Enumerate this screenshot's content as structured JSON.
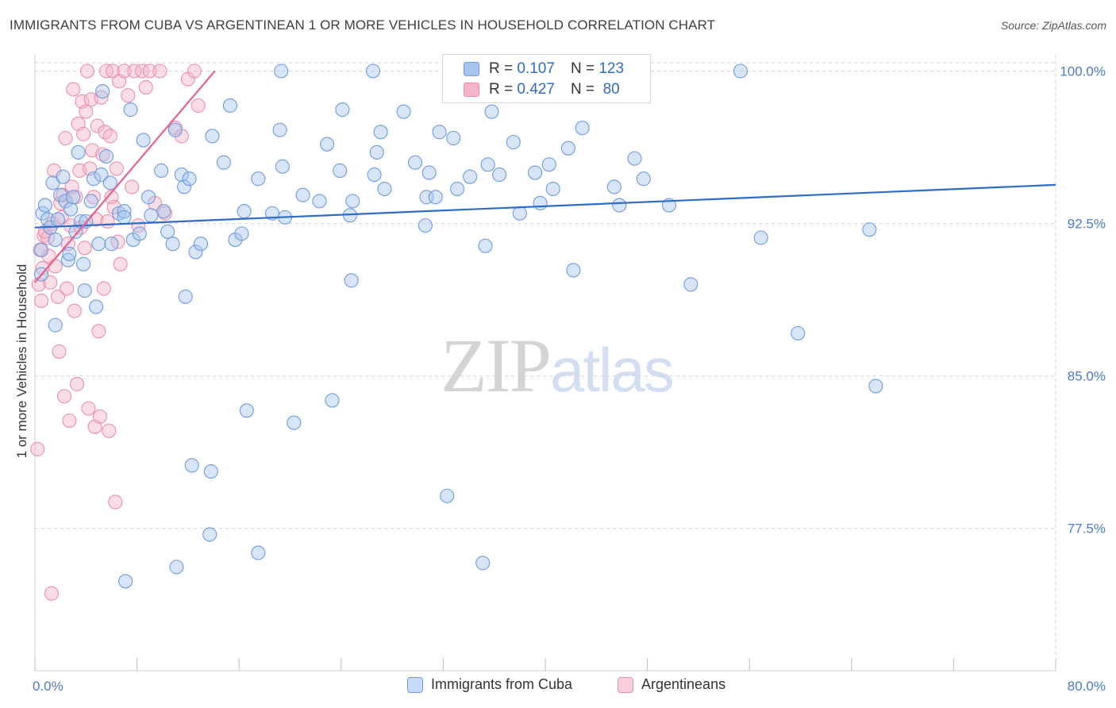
{
  "header": {
    "title": "IMMIGRANTS FROM CUBA VS ARGENTINEAN 1 OR MORE VEHICLES IN HOUSEHOLD CORRELATION CHART",
    "source": "Source: ZipAtlas.com"
  },
  "watermark": {
    "zip": "ZIP",
    "atlas": "atlas"
  },
  "legend_top": {
    "rows": [
      {
        "r_label": "R =",
        "r_value": "0.107",
        "n_label": "N =",
        "n_value": "123"
      },
      {
        "r_label": "R =",
        "r_value": "0.427",
        "n_label": "N =",
        "n_value": "80"
      }
    ]
  },
  "legend_bottom": {
    "items": [
      "Immigrants from Cuba",
      "Argentineans"
    ]
  },
  "colors": {
    "blue_fill": "#a9c5ee",
    "blue_stroke": "#6d9be0",
    "blue_line": "#2f6cc6",
    "pink_fill": "#f4b5c8",
    "pink_stroke": "#ec8eab",
    "pink_line": "#e8618c",
    "tick_text": "#4a7bc8",
    "grid": "#d6d6d6"
  },
  "chart_data": {
    "type": "scatter",
    "title": "IMMIGRANTS FROM CUBA VS ARGENTINEAN 1 OR MORE VEHICLES IN HOUSEHOLD CORRELATION CHART",
    "xlabel": "",
    "ylabel": "1 or more Vehicles in Household",
    "xlim": [
      0,
      80
    ],
    "ylim": [
      70.5,
      100.8
    ],
    "x_tick_labels": [
      "0.0%",
      "80.0%"
    ],
    "y_ticks": [
      77.5,
      85.0,
      92.5,
      100.0
    ],
    "y_tick_labels": [
      "77.5%",
      "85.0%",
      "92.5%",
      "100.0%"
    ],
    "grid": true,
    "series": [
      {
        "name": "Immigrants from Cuba",
        "R": 0.107,
        "N": 123,
        "trend": {
          "x0": 0,
          "y0": 92.3,
          "x1": 80,
          "y1": 94.4
        },
        "points": [
          [
            0.5,
            91.2
          ],
          [
            0.5,
            90.0
          ],
          [
            0.6,
            93.0
          ],
          [
            0.8,
            93.4
          ],
          [
            1.0,
            92.7
          ],
          [
            1.2,
            92.3
          ],
          [
            1.4,
            94.5
          ],
          [
            1.6,
            91.7
          ],
          [
            1.6,
            87.5
          ],
          [
            1.8,
            92.7
          ],
          [
            2.0,
            93.9
          ],
          [
            2.2,
            94.8
          ],
          [
            2.4,
            93.6
          ],
          [
            2.6,
            90.7
          ],
          [
            2.7,
            91.0
          ],
          [
            2.8,
            93.2
          ],
          [
            3.0,
            93.8
          ],
          [
            3.2,
            92.1
          ],
          [
            3.4,
            96.0
          ],
          [
            3.6,
            92.6
          ],
          [
            3.8,
            90.5
          ],
          [
            3.9,
            89.2
          ],
          [
            4.0,
            92.6
          ],
          [
            4.4,
            93.6
          ],
          [
            4.6,
            94.7
          ],
          [
            4.8,
            88.4
          ],
          [
            5.0,
            91.5
          ],
          [
            5.2,
            94.9
          ],
          [
            5.3,
            99.0
          ],
          [
            5.6,
            95.8
          ],
          [
            5.9,
            94.5
          ],
          [
            6.0,
            91.5
          ],
          [
            6.6,
            93.0
          ],
          [
            7.0,
            93.1
          ],
          [
            7.0,
            92.8
          ],
          [
            7.1,
            74.9
          ],
          [
            7.5,
            98.1
          ],
          [
            7.7,
            91.7
          ],
          [
            8.2,
            92.0
          ],
          [
            8.5,
            96.6
          ],
          [
            8.9,
            93.8
          ],
          [
            9.1,
            92.9
          ],
          [
            9.9,
            95.1
          ],
          [
            10.1,
            93.1
          ],
          [
            10.4,
            92.1
          ],
          [
            10.8,
            91.5
          ],
          [
            11.0,
            97.1
          ],
          [
            11.1,
            75.6
          ],
          [
            11.5,
            94.9
          ],
          [
            11.7,
            94.3
          ],
          [
            11.8,
            88.9
          ],
          [
            12.1,
            94.7
          ],
          [
            12.3,
            80.6
          ],
          [
            12.6,
            91.1
          ],
          [
            13.0,
            91.5
          ],
          [
            13.7,
            77.2
          ],
          [
            13.8,
            80.3
          ],
          [
            13.9,
            96.8
          ],
          [
            14.8,
            95.5
          ],
          [
            15.3,
            98.3
          ],
          [
            15.7,
            91.7
          ],
          [
            16.2,
            92.0
          ],
          [
            16.4,
            93.1
          ],
          [
            16.6,
            83.3
          ],
          [
            17.5,
            76.3
          ],
          [
            17.5,
            94.7
          ],
          [
            18.6,
            93.0
          ],
          [
            19.2,
            97.1
          ],
          [
            19.3,
            100.0
          ],
          [
            19.4,
            95.3
          ],
          [
            19.6,
            92.8
          ],
          [
            20.3,
            82.7
          ],
          [
            21.0,
            93.9
          ],
          [
            22.3,
            93.6
          ],
          [
            22.9,
            96.4
          ],
          [
            23.3,
            83.8
          ],
          [
            23.9,
            95.1
          ],
          [
            24.1,
            98.1
          ],
          [
            24.7,
            92.9
          ],
          [
            24.8,
            89.7
          ],
          [
            24.9,
            93.6
          ],
          [
            26.5,
            100.0
          ],
          [
            26.6,
            94.9
          ],
          [
            26.8,
            96.0
          ],
          [
            27.1,
            97.0
          ],
          [
            27.4,
            94.2
          ],
          [
            28.9,
            98.0
          ],
          [
            29.8,
            95.5
          ],
          [
            30.6,
            92.4
          ],
          [
            30.7,
            93.8
          ],
          [
            30.9,
            95.0
          ],
          [
            31.4,
            93.8
          ],
          [
            31.7,
            97.0
          ],
          [
            32.3,
            79.1
          ],
          [
            32.8,
            96.7
          ],
          [
            33.1,
            94.2
          ],
          [
            34.1,
            94.8
          ],
          [
            34.6,
            99.0
          ],
          [
            35.1,
            75.8
          ],
          [
            35.3,
            91.4
          ],
          [
            35.5,
            95.4
          ],
          [
            35.8,
            98.0
          ],
          [
            36.4,
            94.9
          ],
          [
            37.5,
            96.5
          ],
          [
            38.0,
            93.0
          ],
          [
            39.2,
            95.0
          ],
          [
            39.6,
            93.5
          ],
          [
            40.3,
            95.4
          ],
          [
            40.6,
            94.2
          ],
          [
            41.8,
            96.2
          ],
          [
            42.2,
            90.2
          ],
          [
            42.9,
            97.2
          ],
          [
            45.4,
            94.3
          ],
          [
            45.8,
            93.4
          ],
          [
            47.0,
            95.7
          ],
          [
            47.7,
            94.7
          ],
          [
            49.7,
            93.4
          ],
          [
            51.4,
            89.5
          ],
          [
            55.3,
            100.0
          ],
          [
            56.9,
            91.8
          ],
          [
            59.8,
            87.1
          ],
          [
            65.4,
            92.2
          ],
          [
            65.9,
            84.5
          ]
        ]
      },
      {
        "name": "Argentineans",
        "R": 0.427,
        "N": 80,
        "trend": {
          "x0": 0,
          "y0": 89.6,
          "x1": 14.1,
          "y1": 100.0
        },
        "points": [
          [
            0.2,
            81.4
          ],
          [
            0.3,
            89.5
          ],
          [
            0.4,
            91.2
          ],
          [
            0.5,
            88.7
          ],
          [
            0.6,
            90.3
          ],
          [
            0.7,
            91.9
          ],
          [
            0.8,
            92.1
          ],
          [
            1.0,
            91.8
          ],
          [
            1.1,
            90.9
          ],
          [
            1.2,
            89.6
          ],
          [
            1.3,
            74.3
          ],
          [
            1.4,
            92.5
          ],
          [
            1.5,
            95.1
          ],
          [
            1.6,
            90.4
          ],
          [
            1.8,
            88.9
          ],
          [
            1.9,
            86.2
          ],
          [
            2.0,
            93.5
          ],
          [
            2.1,
            92.8
          ],
          [
            2.2,
            93.9
          ],
          [
            2.3,
            84.0
          ],
          [
            2.4,
            96.7
          ],
          [
            2.5,
            89.3
          ],
          [
            2.6,
            91.5
          ],
          [
            2.7,
            82.8
          ],
          [
            2.8,
            92.4
          ],
          [
            2.9,
            94.3
          ],
          [
            3.0,
            99.1
          ],
          [
            3.1,
            88.2
          ],
          [
            3.2,
            93.8
          ],
          [
            3.3,
            84.6
          ],
          [
            3.4,
            97.4
          ],
          [
            3.5,
            95.1
          ],
          [
            3.6,
            92.3
          ],
          [
            3.7,
            98.5
          ],
          [
            3.8,
            96.9
          ],
          [
            3.9,
            91.3
          ],
          [
            4.0,
            98.0
          ],
          [
            4.1,
            100.0
          ],
          [
            4.2,
            83.4
          ],
          [
            4.3,
            95.2
          ],
          [
            4.4,
            98.6
          ],
          [
            4.5,
            96.1
          ],
          [
            4.6,
            93.8
          ],
          [
            4.7,
            82.5
          ],
          [
            4.8,
            92.7
          ],
          [
            4.9,
            97.3
          ],
          [
            5.0,
            87.2
          ],
          [
            5.1,
            83.0
          ],
          [
            5.2,
            98.7
          ],
          [
            5.3,
            95.9
          ],
          [
            5.4,
            89.3
          ],
          [
            5.5,
            97.0
          ],
          [
            5.6,
            100.0
          ],
          [
            5.7,
            92.6
          ],
          [
            5.8,
            82.3
          ],
          [
            5.9,
            96.8
          ],
          [
            6.0,
            93.8
          ],
          [
            6.1,
            100.0
          ],
          [
            6.2,
            93.3
          ],
          [
            6.3,
            78.8
          ],
          [
            6.4,
            95.2
          ],
          [
            6.5,
            91.6
          ],
          [
            6.6,
            99.5
          ],
          [
            6.7,
            90.5
          ],
          [
            7.0,
            100.0
          ],
          [
            7.3,
            98.8
          ],
          [
            7.6,
            94.3
          ],
          [
            7.8,
            100.0
          ],
          [
            8.1,
            92.4
          ],
          [
            8.4,
            100.0
          ],
          [
            8.7,
            99.2
          ],
          [
            9.0,
            100.0
          ],
          [
            9.4,
            93.5
          ],
          [
            9.8,
            100.0
          ],
          [
            10.2,
            93.0
          ],
          [
            11.0,
            97.2
          ],
          [
            11.5,
            96.8
          ],
          [
            12.0,
            99.6
          ],
          [
            12.5,
            100.0
          ],
          [
            12.8,
            98.3
          ]
        ]
      }
    ]
  },
  "axis": {
    "x_left_label": "0.0%",
    "x_right_label": "80.0%",
    "y_label": "1 or more Vehicles in Household"
  }
}
